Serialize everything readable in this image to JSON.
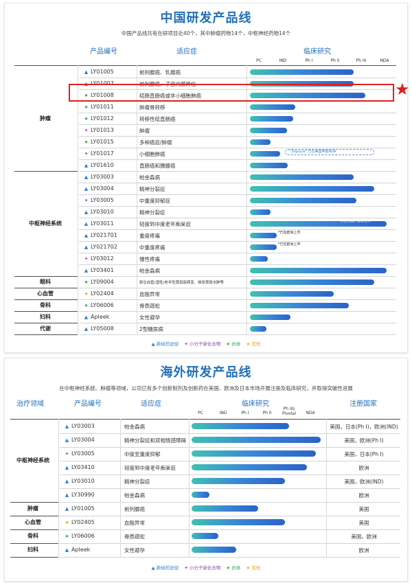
{
  "colors": {
    "blue": "#2f7fd0",
    "green": "#34a853",
    "purple": "#8e44ad",
    "orange": "#f5a623",
    "highlight": "#e02020",
    "title": "#1f6fb8"
  },
  "markers": {
    "blue": "▲",
    "green": "★",
    "purple": "✦",
    "orange": "★"
  },
  "china": {
    "title": "中国研发产品线",
    "subtitle": "中国产品线共有在研项目近40个，其中肿瘤药物14个，中枢神经药物14个",
    "col_product": "产品编号",
    "col_indication": "适应症",
    "col_clinical": "临床研究",
    "stages": [
      "PC",
      "IND",
      "Ph I",
      "Ph II",
      "Ph III",
      "NDA"
    ],
    "areas": [
      "肿瘤",
      "中枢神经系统",
      "眼科",
      "心血管",
      "骨科",
      "妇科",
      "代谢"
    ],
    "notes": {
      "zepsyre": "\"Zepsyre\" 已在美国申报NDA",
      "us_eu": "*已在美国、欧洲上市",
      "eu1": "*已在欧洲上市",
      "eu2": "*已在欧洲上市"
    },
    "legend": [
      "▲ 新给药途径",
      "✦ 小分子新化合物",
      "★ 抗体",
      "★ 其他"
    ],
    "rows": [
      {
        "code": "LY01005",
        "ind": "前列腺癌、乳腺癌",
        "mk": "blue",
        "stage": 4.1
      },
      {
        "code": "LY01007",
        "ind": "前列腺癌、子宫内膜异位",
        "mk": "blue",
        "stage": 4.1
      },
      {
        "code": "LY01008",
        "ind": "结肠直肠癌或非小细胞肺癌",
        "mk": "green",
        "stage": 4.55
      },
      {
        "code": "LY01011",
        "ind": "肿瘤骨转移",
        "mk": "green",
        "stage": 1.8
      },
      {
        "code": "LY01012",
        "ind": "转移性结直肠癌",
        "mk": "green",
        "stage": 1.7
      },
      {
        "code": "LY01013",
        "ind": "肿瘤",
        "mk": "purple",
        "stage": 1.45
      },
      {
        "code": "LY01015",
        "ind": "多种癌症/肿瘤",
        "mk": "green",
        "stage": 0.8
      },
      {
        "code": "LY01017",
        "ind": "小细胞肺癌",
        "mk": "purple",
        "stage": 1.2
      },
      {
        "code": "LY01610",
        "ind": "直肠癌和胰腺癌",
        "mk": "blue",
        "stage": 1.5
      },
      {
        "code": "LY03003",
        "ind": "帕金森病",
        "mk": "blue",
        "stage": 4.1
      },
      {
        "code": "LY03004",
        "ind": "精神分裂症",
        "mk": "blue",
        "stage": 4.9
      },
      {
        "code": "LY03005",
        "ind": "中重度抑郁症",
        "mk": "purple",
        "stage": 4.2
      },
      {
        "code": "LY03010",
        "ind": "精神分裂症",
        "mk": "blue",
        "stage": 0.8
      },
      {
        "code": "LY03011",
        "ind": "轻度到中度老年痴呆症",
        "mk": "blue",
        "stage": 5.4
      },
      {
        "code": "LY021701",
        "ind": "重度疼痛",
        "mk": "blue",
        "stage": 1.05
      },
      {
        "code": "LY021702",
        "ind": "中重度疼痛",
        "mk": "blue",
        "stage": 1.05
      },
      {
        "code": "LY03012",
        "ind": "慢性疼痛",
        "mk": "purple",
        "stage": 0.7
      },
      {
        "code": "LY03401",
        "ind": "帕金森病",
        "mk": "blue",
        "stage": 5.4
      },
      {
        "code": "LY09004",
        "ind": "新生血管(湿性)老年性黄斑部病变、继发黄斑水肿等",
        "mk": "green",
        "stage": 4.9
      },
      {
        "code": "LY02404",
        "ind": "血脂异常",
        "mk": "orange",
        "stage": 3.3
      },
      {
        "code": "LY06006",
        "ind": "骨质疏松",
        "mk": "green",
        "stage": 3.9
      },
      {
        "code": "Apleek",
        "ind": "女性避孕",
        "mk": "blue",
        "stage": 1.6
      },
      {
        "code": "LY05008",
        "ind": "2型糖尿病",
        "mk": "blue",
        "stage": 0.65
      }
    ]
  },
  "overseas": {
    "title": "海外研发产品线",
    "subtitle": "在中枢神经系统、肿瘤等领域，公司已有多个创新制剂及创新药在美国、欧洲及日本市场开展注册及临床研究，并取得突破性进展",
    "col_area": "治疗领域",
    "col_product": "产品编号",
    "col_indication": "适应症",
    "col_clinical": "临床研究",
    "col_country": "注册国家",
    "stages": [
      "PC",
      "IND",
      "Ph I",
      "Ph II",
      "Ph III/ Pivotal",
      "NDA"
    ],
    "areas": [
      "中枢神经系统",
      "肿瘤",
      "心血管",
      "骨科",
      "妇科"
    ],
    "legend": [
      "▲ 新给药途径",
      "✦ 小分子新化合物",
      "★ 抗体",
      "★ 其他"
    ],
    "rows": [
      {
        "code": "LY03003",
        "ind": "帕金森病",
        "mk": "blue",
        "stage": 4.4,
        "country": "美国，日本(Ph I)，欧洲(IND)"
      },
      {
        "code": "LY03004",
        "ind": "精神分裂症和双相情感障碍",
        "mk": "blue",
        "stage": 5.8,
        "country": "美国，欧洲(Ph I)"
      },
      {
        "code": "LY03005",
        "ind": "中度至重度抑郁",
        "mk": "purple",
        "stage": 5.6,
        "country": "美国，日本(Ph I)"
      },
      {
        "code": "LY03410",
        "ind": "轻度到中度老年痴呆症",
        "mk": "blue",
        "stage": 5.2,
        "country": "欧洲"
      },
      {
        "code": "LY03010",
        "ind": "精神分裂症",
        "mk": "blue",
        "stage": 4.2,
        "country": "美国，欧洲(IND)"
      },
      {
        "code": "LY30990",
        "ind": "帕金森病",
        "mk": "blue",
        "stage": 0.8,
        "country": "欧洲"
      },
      {
        "code": "LY01005",
        "ind": "前列腺癌",
        "mk": "blue",
        "stage": 3.0,
        "country": "美国"
      },
      {
        "code": "LY02405",
        "ind": "血脂异常",
        "mk": "orange",
        "stage": 4.2,
        "country": "美国"
      },
      {
        "code": "LY06006",
        "ind": "骨质疏松",
        "mk": "green",
        "stage": 1.2,
        "country": "美国，欧洲"
      },
      {
        "code": "Apleek",
        "ind": "女性避孕",
        "mk": "blue",
        "stage": 2.0,
        "country": "欧洲"
      }
    ]
  },
  "chart_data": [
    {
      "type": "bar",
      "title": "中国研发产品线",
      "orientation": "horizontal",
      "x_axis": "临床研究",
      "stages": [
        "PC",
        "IND",
        "Ph I",
        "Ph II",
        "Ph III",
        "NDA"
      ],
      "categories": [
        "LY01005",
        "LY01007",
        "LY01008",
        "LY01011",
        "LY01012",
        "LY01013",
        "LY01015",
        "LY01017",
        "LY01610",
        "LY03003",
        "LY03004",
        "LY03005",
        "LY03010",
        "LY03011",
        "LY021701",
        "LY021702",
        "LY03012",
        "LY03401",
        "LY09004",
        "LY02404",
        "LY06006",
        "Apleek",
        "LY05008"
      ],
      "values": [
        4.1,
        4.1,
        4.55,
        1.8,
        1.7,
        1.45,
        0.8,
        1.2,
        1.5,
        4.1,
        4.9,
        4.2,
        0.8,
        5.4,
        1.05,
        1.05,
        0.7,
        5.4,
        4.9,
        3.3,
        3.9,
        1.6,
        0.65
      ]
    },
    {
      "type": "bar",
      "title": "海外研发产品线",
      "orientation": "horizontal",
      "x_axis": "临床研究",
      "stages": [
        "PC",
        "IND",
        "Ph I",
        "Ph II",
        "Ph III/ Pivotal",
        "NDA"
      ],
      "categories": [
        "LY03003",
        "LY03004",
        "LY03005",
        "LY03410",
        "LY03010",
        "LY30990",
        "LY01005",
        "LY02405",
        "LY06006",
        "Apleek"
      ],
      "values": [
        4.4,
        5.8,
        5.6,
        5.2,
        4.2,
        0.8,
        3.0,
        4.2,
        1.2,
        2.0
      ]
    }
  ]
}
